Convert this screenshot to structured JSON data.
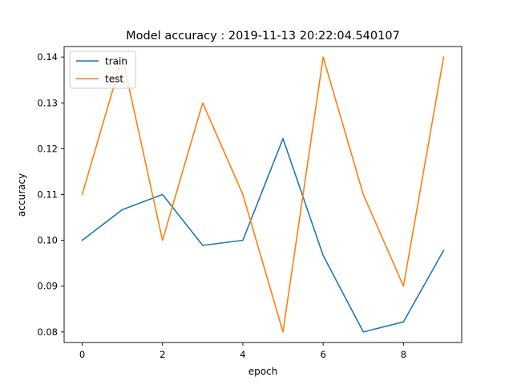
{
  "chart_data": {
    "type": "line",
    "title": "Model accuracy : 2019-11-13 20:22:04.540107",
    "xlabel": "epoch",
    "ylabel": "accuracy",
    "xlim": [
      -0.45,
      9.45
    ],
    "ylim": [
      0.0777,
      0.1423
    ],
    "xticks": [
      0,
      2,
      4,
      6,
      8
    ],
    "xtick_labels": [
      "0",
      "2",
      "4",
      "6",
      "8"
    ],
    "yticks": [
      0.08,
      0.09,
      0.1,
      0.11,
      0.12,
      0.13,
      0.14
    ],
    "ytick_labels": [
      "0.08",
      "0.09",
      "0.10",
      "0.11",
      "0.12",
      "0.13",
      "0.14"
    ],
    "grid": false,
    "legend_position": "upper-left",
    "x": [
      0,
      1,
      2,
      3,
      4,
      5,
      6,
      7,
      8,
      9
    ],
    "series": [
      {
        "name": "train",
        "color": "#1f77b4",
        "values": [
          0.1,
          0.1067,
          0.11,
          0.0989,
          0.1,
          0.1222,
          0.0967,
          0.08,
          0.0822,
          0.0978
        ]
      },
      {
        "name": "test",
        "color": "#ff7f0e",
        "values": [
          0.11,
          0.14,
          0.1,
          0.13,
          0.11,
          0.08,
          0.14,
          0.11,
          0.09,
          0.14
        ]
      }
    ]
  }
}
